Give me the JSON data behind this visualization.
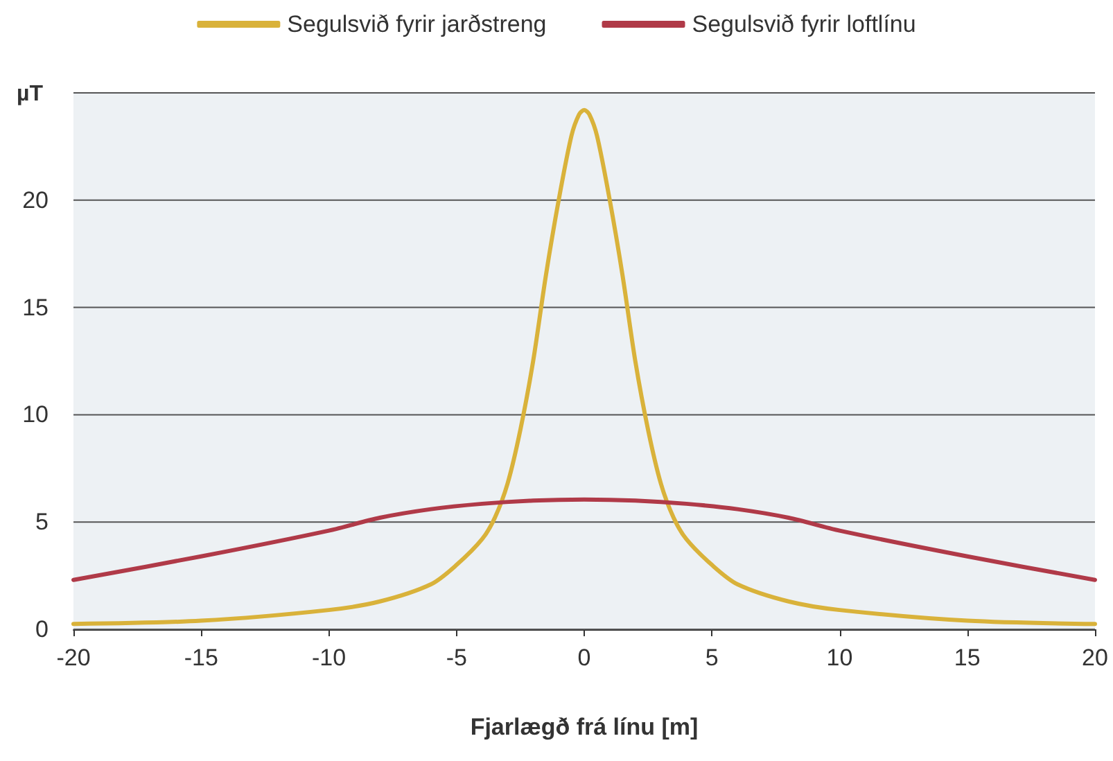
{
  "chart_data": {
    "type": "line",
    "xlabel": "Fjarlægð frá línu [m]",
    "ylabel": "µT",
    "xlim": [
      -20,
      20
    ],
    "xticks": [
      -20,
      -15,
      -10,
      -5,
      0,
      5,
      10,
      15,
      20
    ],
    "ylim": [
      0,
      25
    ],
    "yticks": [
      0,
      5,
      10,
      15,
      20,
      {
        "value": 25,
        "label": null
      }
    ],
    "grid": "y",
    "legend": "top",
    "marker": "none",
    "line_style": "solid",
    "series": [
      {
        "name": "Segulsvið fyrir jarðstreng",
        "color": "#d9b23a",
        "x": [
          -20,
          -15,
          -10,
          -8,
          -6,
          -5,
          -4,
          -3.5,
          -3,
          -2.5,
          -2,
          -1.5,
          -1,
          -0.5,
          -0.2,
          0,
          0.2,
          0.5,
          1,
          1.5,
          2,
          2.5,
          3,
          3.5,
          4,
          5,
          6,
          8,
          10,
          15,
          20
        ],
        "values": [
          0.25,
          0.4,
          0.9,
          1.3,
          2.1,
          3,
          4.2,
          5.2,
          6.8,
          9.3,
          12.5,
          16.5,
          20,
          23,
          24,
          24.2,
          24,
          23,
          20,
          16.5,
          12.5,
          9.3,
          6.8,
          5.2,
          4.2,
          3,
          2.1,
          1.3,
          0.9,
          0.4,
          0.25
        ]
      },
      {
        "name": "Segulsvið fyrir loftlínu",
        "color": "#b03a48",
        "x": [
          -20,
          -15,
          -10,
          -8,
          -6,
          -4,
          -2,
          0,
          2,
          4,
          6,
          8,
          10,
          15,
          20
        ],
        "values": [
          2.3,
          3.4,
          4.6,
          5.2,
          5.6,
          5.85,
          6,
          6.05,
          6,
          5.85,
          5.6,
          5.2,
          4.6,
          3.4,
          2.3
        ]
      }
    ]
  }
}
